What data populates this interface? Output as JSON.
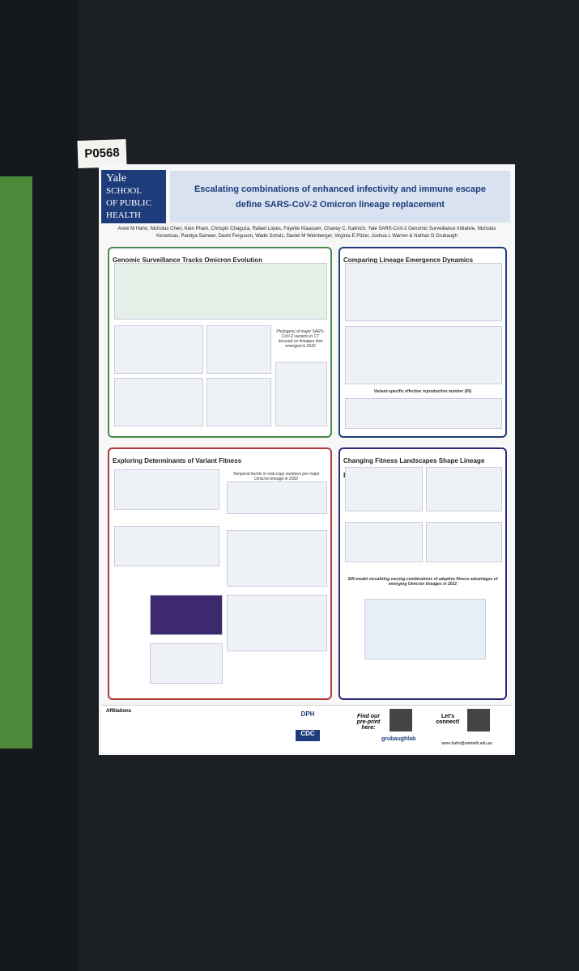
{
  "label": "P0568",
  "header": {
    "logo": [
      "Yale",
      "SCHOOL",
      "OF PUBLIC",
      "HEALTH"
    ],
    "title": [
      "Escalating combinations of enhanced infectivity and immune escape",
      "define SARS-CoV-2 Omicron lineage replacement"
    ],
    "authors": "Anne M Hahn, Nicholas Chen, Kien Pham, Chrispin Chaguza, Rafael Lopes, Fayette Klaassen, Chaney C. Kalinich, Yale SARS-CoV-2 Genomic Surveillance Initiative, Nicholas Kerantzas, Pandya Sameer, David Ferguson, Wade Schulz, Daniel M Weinberger, Virginia E Pitzer, Joshua L Warren & Nathan D Grubaugh"
  },
  "sections": [
    {
      "title": "Genomic Surveillance Tracks Omicron Evolution",
      "caption": "Phylogeny of major SARS-CoV-2 variants in CT focused on lineages that emerged in 2022"
    },
    {
      "title": "Comparing Lineage Emergence Dynamics",
      "caption": "Variant-specific effective reproduction number (Rt)"
    },
    {
      "title": "Exploring Determinants of Variant Fitness",
      "caption": "Temporal trends in viral copy numbers per major Omicron lineage in 2022"
    },
    {
      "title": "Changing Fitness Landscapes Shape Lineage Emergence",
      "caption": "SIR-model visualizing varying combinations of adaptive fitness advantages of emerging Omicron lineages in 2022"
    }
  ],
  "footer": {
    "affiliations": "Affiliations",
    "preprint": "Find our pre-print here:",
    "lab": "grubaughlab",
    "connect": "Let's connect!",
    "email": "anne.hahn@unimelb.edu.au",
    "partners": [
      "DPH",
      "CDC"
    ]
  }
}
